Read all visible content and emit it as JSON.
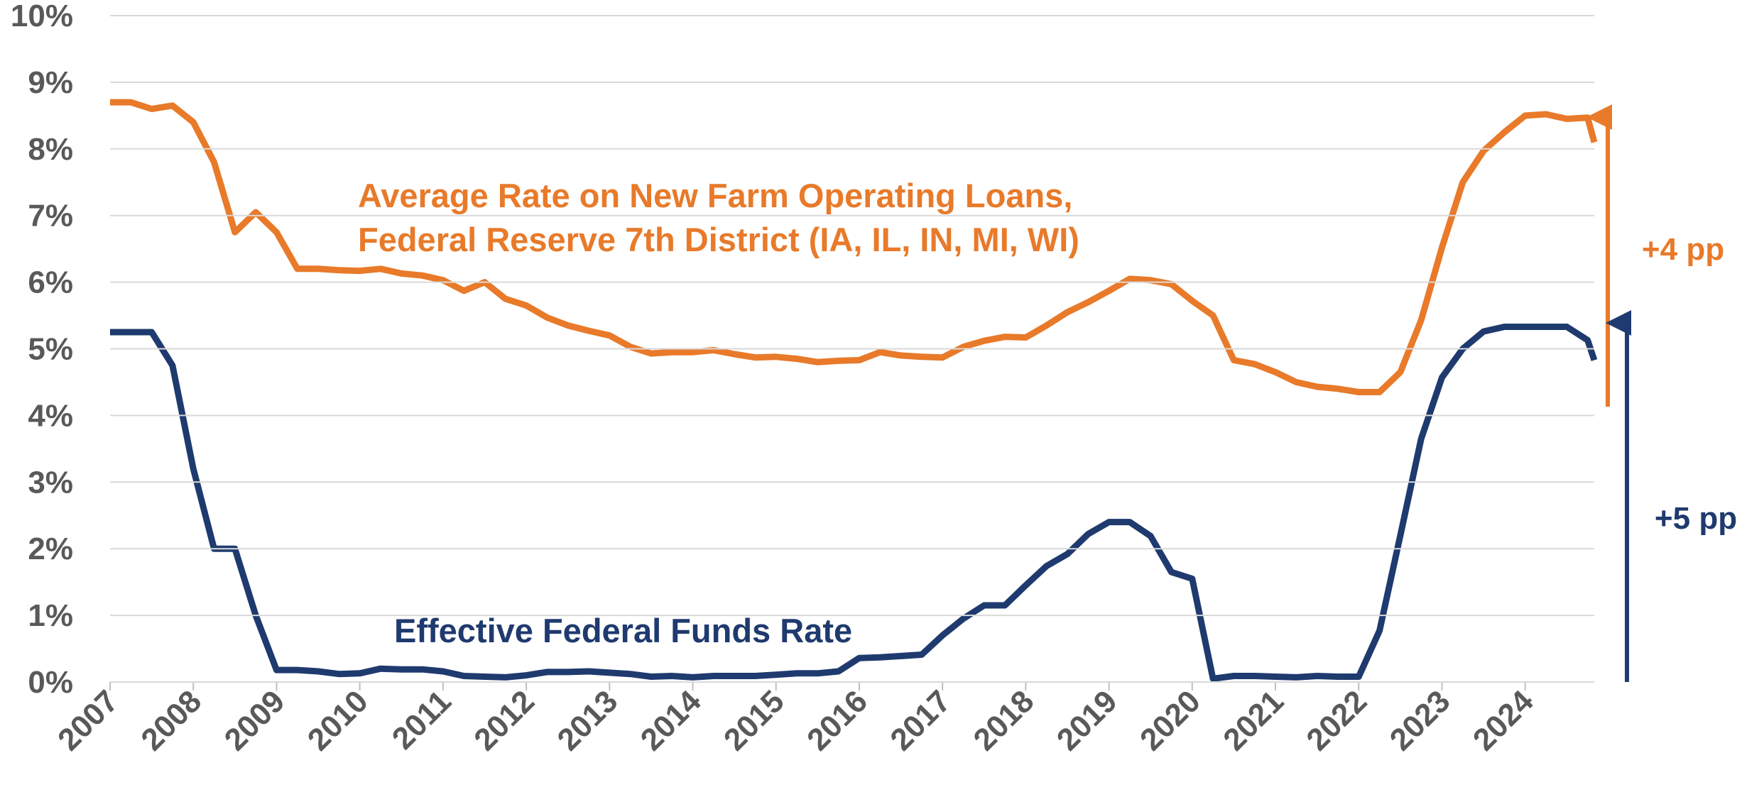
{
  "chart_data": {
    "type": "line",
    "x": [
      2007,
      2007.25,
      2007.5,
      2007.75,
      2008,
      2008.25,
      2008.5,
      2008.75,
      2009,
      2009.25,
      2009.5,
      2009.75,
      2010,
      2010.25,
      2010.5,
      2010.75,
      2011,
      2011.25,
      2011.5,
      2011.75,
      2012,
      2012.25,
      2012.5,
      2012.75,
      2013,
      2013.25,
      2013.5,
      2013.75,
      2014,
      2014.25,
      2014.5,
      2014.75,
      2015,
      2015.25,
      2015.5,
      2015.75,
      2016,
      2016.25,
      2016.5,
      2016.75,
      2017,
      2017.25,
      2017.5,
      2017.75,
      2018,
      2018.25,
      2018.5,
      2018.75,
      2019,
      2019.25,
      2019.5,
      2019.75,
      2020,
      2020.25,
      2020.5,
      2020.75,
      2021,
      2021.25,
      2021.5,
      2021.75,
      2022,
      2022.25,
      2022.5,
      2022.75,
      2023,
      2023.25,
      2023.5,
      2023.75,
      2024,
      2024.25,
      2024.5,
      2024.75,
      2024.83
    ],
    "series": [
      {
        "name": "Average Rate on New Farm Operating Loans, Federal Reserve 7th District (IA, IL, IN, MI, WI)",
        "color": "#e87a2a",
        "values": [
          8.7,
          8.7,
          8.6,
          8.65,
          8.4,
          7.8,
          6.75,
          7.05,
          6.75,
          6.2,
          6.2,
          6.18,
          6.17,
          6.2,
          6.13,
          6.1,
          6.03,
          5.87,
          6.0,
          5.75,
          5.65,
          5.47,
          5.35,
          5.27,
          5.2,
          5.03,
          4.93,
          4.95,
          4.95,
          4.98,
          4.92,
          4.87,
          4.88,
          4.85,
          4.8,
          4.82,
          4.83,
          4.95,
          4.9,
          4.88,
          4.87,
          5.03,
          5.12,
          5.18,
          5.17,
          5.35,
          5.55,
          5.7,
          5.87,
          6.05,
          6.03,
          5.97,
          5.72,
          5.5,
          4.83,
          4.77,
          4.65,
          4.5,
          4.43,
          4.4,
          4.35,
          4.35,
          4.65,
          5.43,
          6.52,
          7.5,
          7.97,
          8.25,
          8.5,
          8.52,
          8.45,
          8.47,
          8.1
        ]
      },
      {
        "name": "Effective Federal Funds Rate",
        "color": "#1f3a6e",
        "values": [
          5.25,
          5.25,
          5.25,
          4.75,
          3.2,
          2.0,
          2.0,
          1.0,
          0.18,
          0.18,
          0.16,
          0.12,
          0.13,
          0.2,
          0.19,
          0.19,
          0.16,
          0.09,
          0.08,
          0.07,
          0.1,
          0.15,
          0.15,
          0.16,
          0.14,
          0.12,
          0.08,
          0.09,
          0.07,
          0.09,
          0.09,
          0.09,
          0.11,
          0.13,
          0.13,
          0.16,
          0.36,
          0.37,
          0.39,
          0.41,
          0.7,
          0.95,
          1.15,
          1.15,
          1.45,
          1.74,
          1.92,
          2.22,
          2.4,
          2.4,
          2.19,
          1.65,
          1.55,
          0.05,
          0.09,
          0.09,
          0.08,
          0.07,
          0.09,
          0.08,
          0.08,
          0.77,
          2.2,
          3.65,
          4.57,
          5.0,
          5.26,
          5.33,
          5.33,
          5.33,
          5.33,
          5.13,
          4.83
        ]
      }
    ],
    "annotations": [
      "+4 pp",
      "+5 pp"
    ],
    "xlim": [
      2007,
      2024.83
    ],
    "xticks": [
      2007,
      2008,
      2009,
      2010,
      2011,
      2012,
      2013,
      2014,
      2015,
      2016,
      2017,
      2018,
      2019,
      2020,
      2021,
      2022,
      2023,
      2024
    ],
    "ylim": [
      0,
      10
    ],
    "yticks": [
      {
        "value": 0,
        "label": "0%"
      },
      {
        "value": 1,
        "label": "1%"
      },
      {
        "value": 2,
        "label": "2%"
      },
      {
        "value": 3,
        "label": "3%"
      },
      {
        "value": 4,
        "label": "4%"
      },
      {
        "value": 5,
        "label": "5%"
      },
      {
        "value": 6,
        "label": "6%"
      },
      {
        "value": 7,
        "label": "7%"
      },
      {
        "value": 8,
        "label": "8%"
      },
      {
        "value": 9,
        "label": "9%"
      },
      {
        "value": 10,
        "label": "10%"
      }
    ],
    "grid": true
  }
}
